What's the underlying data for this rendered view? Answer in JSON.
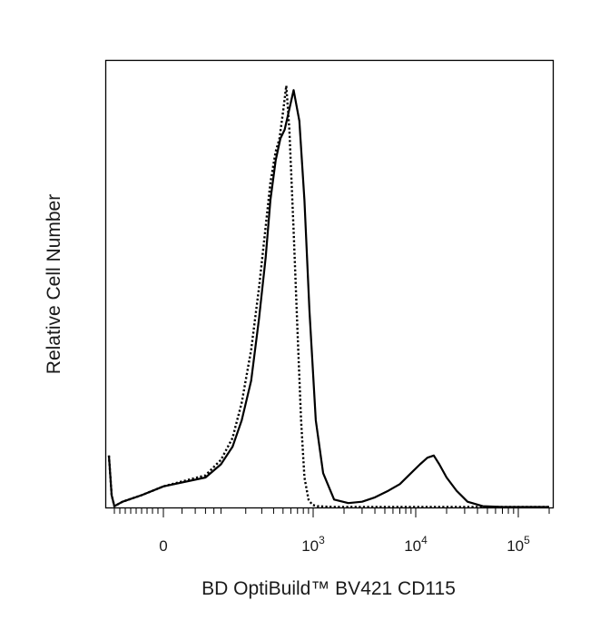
{
  "chart_data": {
    "type": "line",
    "title": "",
    "xlabel": "BD OptiBuild™ BV421 CD115",
    "ylabel": "Relative Cell Number",
    "x_scale": "biexponential",
    "xlim": [
      -200,
      200000
    ],
    "ylim": [
      0,
      100
    ],
    "grid": false,
    "legend": "none",
    "x_ticks": [
      {
        "value": 0,
        "label": "0"
      },
      {
        "value": 1000,
        "label": "10",
        "sup": "3"
      },
      {
        "value": 10000,
        "label": "10",
        "sup": "4"
      },
      {
        "value": 100000,
        "label": "10",
        "sup": "5"
      }
    ],
    "series": [
      {
        "style": "solid",
        "color": "#000000",
        "x": [
          -200,
          -190,
          -180,
          -150,
          -80,
          0,
          60,
          100,
          140,
          180,
          230,
          280,
          330,
          370,
          420,
          470,
          520,
          570,
          640,
          730,
          820,
          920,
          1060,
          1250,
          1600,
          2200,
          3000,
          4000,
          5400,
          7000,
          9000,
          11000,
          13000,
          15000,
          17000,
          20000,
          25000,
          32000,
          45000,
          70000,
          200000
        ],
        "y": [
          12,
          3,
          0.5,
          1.5,
          3,
          5,
          7,
          10,
          14,
          20,
          29,
          43,
          57,
          70,
          79,
          84,
          86,
          90,
          95,
          88,
          70,
          45,
          20,
          8,
          2,
          1.2,
          1.5,
          2.5,
          4,
          5.5,
          8,
          10,
          11.5,
          12,
          10,
          7,
          4,
          1.5,
          0.5,
          0.3,
          0.3
        ]
      },
      {
        "style": "dotted",
        "color": "#000000",
        "x": [
          -200,
          -190,
          -180,
          -150,
          -80,
          0,
          60,
          100,
          140,
          180,
          230,
          280,
          330,
          370,
          420,
          460,
          500,
          540,
          580,
          640,
          700,
          760,
          820,
          900,
          980,
          1100,
          1300,
          1700,
          3000,
          10000,
          200000
        ],
        "y": [
          12,
          3,
          0.5,
          1.5,
          3,
          5,
          7.5,
          11,
          16,
          24,
          36,
          50,
          64,
          74,
          81,
          84,
          90,
          96,
          86,
          63,
          40,
          20,
          7,
          2,
          0.8,
          0.5,
          0.4,
          0.3,
          0.3,
          0.3,
          0.3
        ]
      }
    ]
  }
}
